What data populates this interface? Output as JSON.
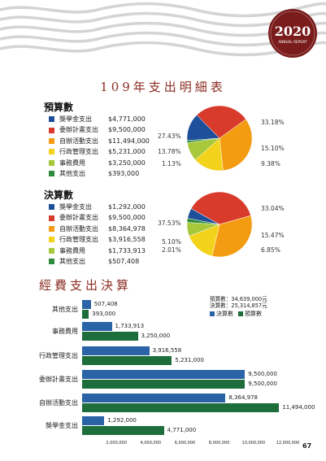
{
  "badge": {
    "year": "2020",
    "subtitle": "ANNUAL REPORT"
  },
  "page_title": "109年支出明細表",
  "budget": {
    "heading": "預算數",
    "items": [
      {
        "label": "獎學金支出",
        "amount": "$4,771,000",
        "color": "#1e4f9a"
      },
      {
        "label": "委辦計畫支出",
        "amount": "$9,500,000",
        "color": "#d83a2b"
      },
      {
        "label": "自辦活動支出",
        "amount": "$11,494,000",
        "color": "#f39c12"
      },
      {
        "label": "行政管理支出",
        "amount": "$5,231,000",
        "color": "#f2d21b"
      },
      {
        "label": "事務費用",
        "amount": "$3,250,000",
        "color": "#a6c83a"
      },
      {
        "label": "其他支出",
        "amount": "$393,000",
        "color": "#2e8b3a"
      }
    ],
    "percents": [
      "13.78%",
      "27.43%",
      "33.18%",
      "15.10%",
      "9.38%",
      "1.13%"
    ]
  },
  "actual": {
    "heading": "決算數",
    "items": [
      {
        "label": "獎學金支出",
        "amount": "$1,292,000",
        "color": "#1e4f9a"
      },
      {
        "label": "委辦計畫支出",
        "amount": "$9,500,000",
        "color": "#d83a2b"
      },
      {
        "label": "自辦活動支出",
        "amount": "$8,364,978",
        "color": "#f39c12"
      },
      {
        "label": "行政管理支出",
        "amount": "$3,916,558",
        "color": "#f2d21b"
      },
      {
        "label": "事務費用",
        "amount": "$1,733,913",
        "color": "#a6c83a"
      },
      {
        "label": "其他支出",
        "amount": "$507,408",
        "color": "#2e8b3a"
      }
    ],
    "percents": [
      "5.10%",
      "37.53%",
      "33.04%",
      "15.47%",
      "6.85%",
      "2.01%"
    ]
  },
  "bar_section": {
    "title": "經費支出決算",
    "total_budget": "預算數：34,639,000元",
    "total_actual": "決算數：25,314,857元",
    "legend_actual": "決算數",
    "legend_budget": "預算數"
  },
  "page_number": "67",
  "chart_data": [
    {
      "type": "pie",
      "title": "預算數",
      "categories": [
        "獎學金支出",
        "委辦計畫支出",
        "自辦活動支出",
        "行政管理支出",
        "事務費用",
        "其他支出"
      ],
      "values": [
        13.78,
        27.43,
        33.18,
        15.1,
        9.38,
        1.13
      ],
      "colors": [
        "#1e4f9a",
        "#d83a2b",
        "#f39c12",
        "#f2d21b",
        "#a6c83a",
        "#2e8b3a"
      ]
    },
    {
      "type": "pie",
      "title": "決算數",
      "categories": [
        "獎學金支出",
        "委辦計畫支出",
        "自辦活動支出",
        "行政管理支出",
        "事務費用",
        "其他支出"
      ],
      "values": [
        5.1,
        37.53,
        33.04,
        15.47,
        6.85,
        2.01
      ],
      "colors": [
        "#1e4f9a",
        "#d83a2b",
        "#f39c12",
        "#f2d21b",
        "#a6c83a",
        "#2e8b3a"
      ]
    },
    {
      "type": "bar",
      "orientation": "horizontal",
      "title": "經費支出決算",
      "categories": [
        "其他支出",
        "事務費用",
        "行政管理支出",
        "委辦計畫支出",
        "自辦活動支出",
        "獎學金支出"
      ],
      "series": [
        {
          "name": "決算數",
          "color": "#2a63a6",
          "values": [
            507408,
            1733913,
            3916558,
            9500000,
            8364978,
            1292000
          ]
        },
        {
          "name": "預算數",
          "color": "#1e6e3c",
          "values": [
            393000,
            3250000,
            5231000,
            9500000,
            11494000,
            4771000
          ]
        }
      ],
      "value_labels": {
        "決算數": [
          "507,408",
          "1,733,913",
          "3,916,558",
          "9,500,000",
          "8,364,978",
          "1,292,000"
        ],
        "預算數": [
          "393,000",
          "3,250,000",
          "5,231,000",
          "9,500,000",
          "11,494,000",
          "4,771,000"
        ]
      },
      "xticks": [
        "2,000,000",
        "4,000,000",
        "6,000,000",
        "8,000,000",
        "10,000,000",
        "12,000,000"
      ],
      "xlim": [
        0,
        12000000
      ]
    }
  ]
}
